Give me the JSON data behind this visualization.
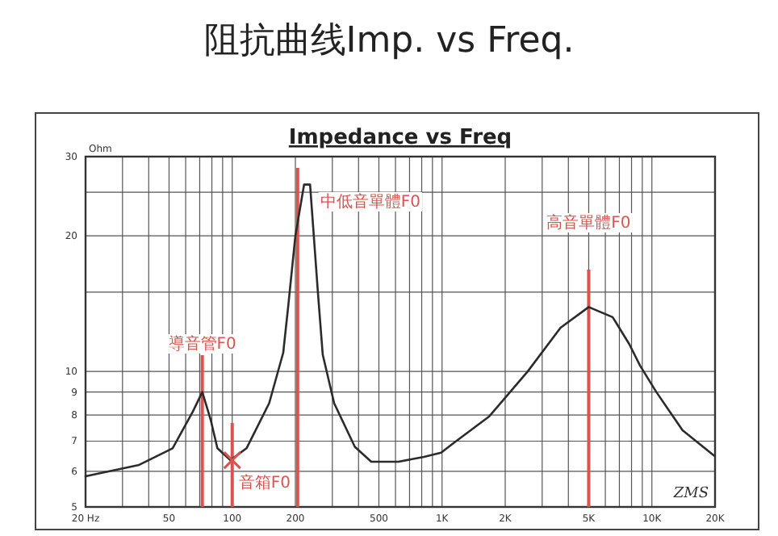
{
  "chart_data": {
    "type": "line",
    "title": "阻抗曲线Imp. vs Freq.",
    "subtitle": "Impedance vs Freq",
    "ylabel": "Ohm",
    "log": "xy",
    "grid": true,
    "marker": "none",
    "line_style": "solid",
    "xlim": [
      20,
      20000
    ],
    "ylim": [
      5,
      30
    ],
    "xticks": [
      {
        "value": 20,
        "label": "20 Hz"
      },
      {
        "value": 30,
        "label": null
      },
      {
        "value": 40,
        "label": null
      },
      50,
      {
        "value": 60,
        "label": null
      },
      {
        "value": 70,
        "label": null
      },
      {
        "value": 80,
        "label": null
      },
      {
        "value": 90,
        "label": null
      },
      100,
      200,
      {
        "value": 300,
        "label": null
      },
      {
        "value": 400,
        "label": null
      },
      500,
      {
        "value": 600,
        "label": null
      },
      {
        "value": 700,
        "label": null
      },
      {
        "value": 800,
        "label": null
      },
      {
        "value": 900,
        "label": null
      },
      {
        "value": 1000,
        "label": "1K"
      },
      {
        "value": 2000,
        "label": "2K"
      },
      {
        "value": 3000,
        "label": null
      },
      {
        "value": 4000,
        "label": null
      },
      {
        "value": 5000,
        "label": "5K"
      },
      {
        "value": 6000,
        "label": null
      },
      {
        "value": 7000,
        "label": null
      },
      {
        "value": 8000,
        "label": null
      },
      {
        "value": 9000,
        "label": null
      },
      {
        "value": 10000,
        "label": "10K"
      },
      {
        "value": 20000,
        "label": "20K"
      }
    ],
    "yticks": [
      5,
      6,
      7,
      8,
      9,
      10,
      {
        "value": 15,
        "label": null
      },
      20,
      {
        "value": 25,
        "label": null
      },
      30
    ],
    "series": [
      {
        "color": "#2b2b2b",
        "x": [
          20,
          36,
          52,
          65,
          72,
          79,
          85,
          98,
          117,
          150,
          175,
          185,
          200,
          220,
          235,
          256,
          270,
          306,
          384,
          460,
          620,
          820,
          990,
          1120,
          1680,
          2560,
          3670,
          5000,
          6500,
          7800,
          8780,
          10500,
          14000,
          19800
        ],
        "values": [
          5.85,
          6.2,
          6.75,
          8.15,
          9,
          7.8,
          6.75,
          6.35,
          6.75,
          8.5,
          11,
          14,
          20,
          26,
          26,
          15,
          10.9,
          8.5,
          6.8,
          6.3,
          6.3,
          6.46,
          6.6,
          6.9,
          7.95,
          10,
          12.5,
          13.9,
          13.2,
          11.5,
          10.3,
          9,
          7.4,
          6.5
        ]
      },
      {
        "type": "scatter",
        "marker": "cross",
        "color": "#d9534f",
        "x": [
          100
        ],
        "values": [
          6.35
        ]
      }
    ],
    "ref_lines": [
      {
        "axis": "x",
        "value": 72,
        "label": "導音管F0",
        "color": "#d9534f"
      },
      {
        "axis": "x",
        "value": 205,
        "label": "中低音單體F0",
        "color": "#d9534f"
      },
      {
        "axis": "x",
        "value": 100,
        "label": "音箱F0",
        "color": "#d9534f"
      },
      {
        "axis": "x",
        "value": 5000,
        "label": "高音單體F0",
        "color": "#d9534f"
      }
    ],
    "annotations": [
      "ZMS"
    ]
  }
}
